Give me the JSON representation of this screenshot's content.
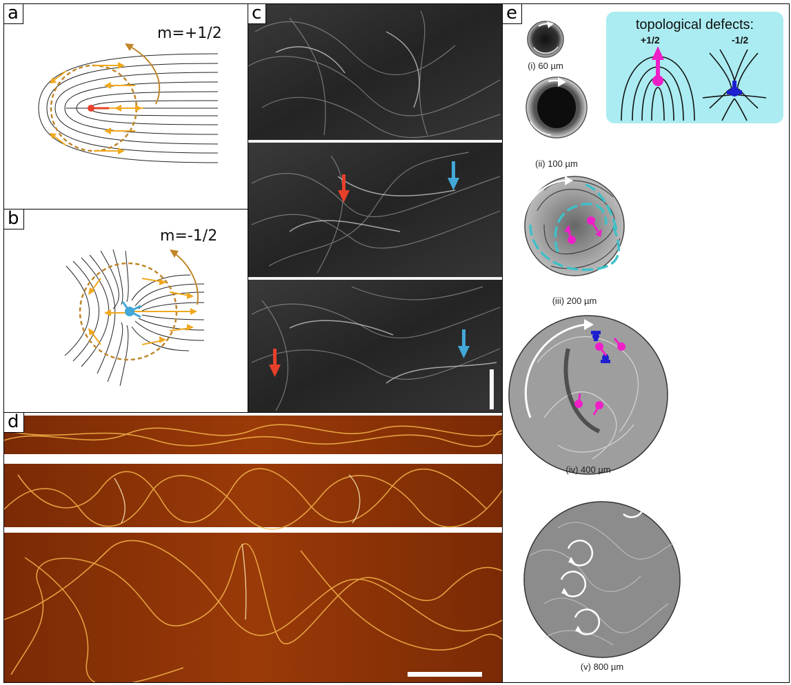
{
  "panels": {
    "a": {
      "label": "a",
      "charge": "m=+1/2"
    },
    "b": {
      "label": "b",
      "charge": "m=-1/2"
    },
    "c": {
      "label": "c"
    },
    "d": {
      "label": "d"
    },
    "e": {
      "label": "e",
      "legend": {
        "title": "topological defects:",
        "plus": "+1/2",
        "minus": "-1/2"
      },
      "captions": [
        "(i) 60 µm",
        "(ii) 100 µm",
        "(iii) 200 µm",
        "(iv) 400 µm",
        "(v) 800 µm"
      ]
    }
  },
  "colors": {
    "orange": "#f0a81e",
    "brown": "#c0862a",
    "red": "#e8402a",
    "cyan": "#42a8d8",
    "magenta": "#ee1fc8",
    "blue": "#1d1fd0",
    "teal": "#3fc0c8",
    "legend_bg": "#aaecf1"
  }
}
